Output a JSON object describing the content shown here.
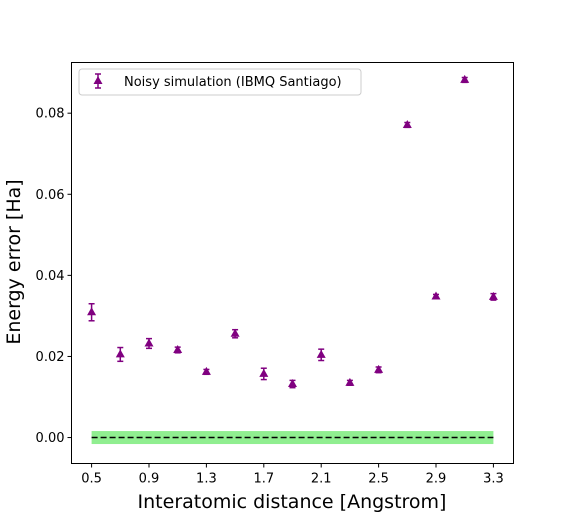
{
  "chart_data": {
    "type": "scatter",
    "xlabel": "Interatomic distance [Angstrom]",
    "ylabel": "Energy error [Ha]",
    "xlim": [
      0.36,
      3.44
    ],
    "ylim": [
      -0.0064,
      0.0925
    ],
    "x_ticks": [
      "0.5",
      "0.9",
      "1.3",
      "1.7",
      "2.1",
      "2.5",
      "2.9",
      "3.3"
    ],
    "y_ticks": [
      "0.00",
      "0.02",
      "0.04",
      "0.06",
      "0.08"
    ],
    "legend_position": "top-left",
    "series": [
      {
        "name": "Noisy simulation (IBMQ Santiago)",
        "color": "#800080",
        "marker": "triangle-up",
        "points": [
          {
            "x": 0.5,
            "y": 0.0309,
            "err": 0.0021
          },
          {
            "x": 0.7,
            "y": 0.0205,
            "err": 0.0017
          },
          {
            "x": 0.9,
            "y": 0.0232,
            "err": 0.0012
          },
          {
            "x": 1.1,
            "y": 0.0216,
            "err": 0.0007
          },
          {
            "x": 1.3,
            "y": 0.0162,
            "err": 0.0006
          },
          {
            "x": 1.5,
            "y": 0.0256,
            "err": 0.001
          },
          {
            "x": 1.7,
            "y": 0.0157,
            "err": 0.0014
          },
          {
            "x": 1.9,
            "y": 0.0132,
            "err": 0.0009
          },
          {
            "x": 2.1,
            "y": 0.0204,
            "err": 0.0014
          },
          {
            "x": 2.3,
            "y": 0.0135,
            "err": 0.0006
          },
          {
            "x": 2.5,
            "y": 0.0167,
            "err": 0.0007
          },
          {
            "x": 2.7,
            "y": 0.0771,
            "err": 0.0006
          },
          {
            "x": 2.9,
            "y": 0.0348,
            "err": 0.0005
          },
          {
            "x": 3.1,
            "y": 0.0882,
            "err": 0.0006
          },
          {
            "x": 3.3,
            "y": 0.0347,
            "err": 0.0008
          }
        ]
      }
    ],
    "reference": {
      "band_color": "#90ee90",
      "band_center": 0.0,
      "band_halfwidth": 0.0016,
      "band_x": [
        0.5,
        3.3
      ],
      "line_color": "#000000",
      "line_style": "dashed"
    }
  }
}
